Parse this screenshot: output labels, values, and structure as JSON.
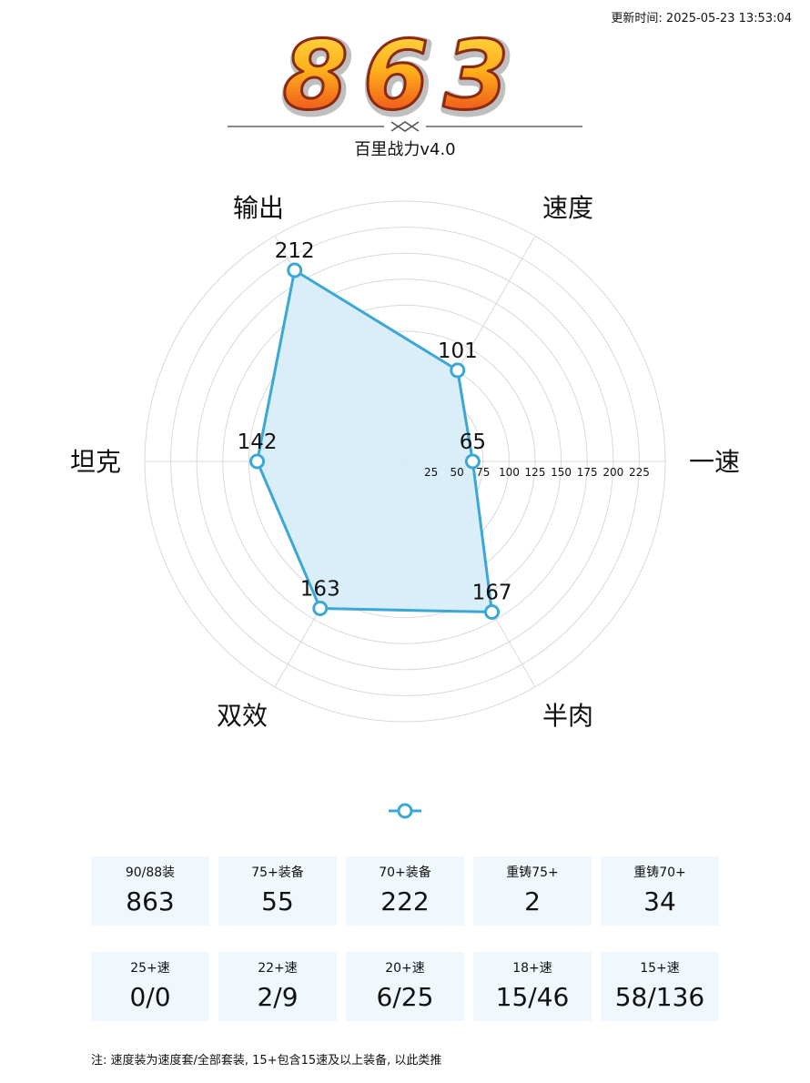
{
  "header": {
    "update_label": "更新时间: 2025-05-23 13:53:04",
    "score": "863",
    "subtitle": "百里战力v4.0"
  },
  "chart_data": {
    "type": "radar",
    "title": "",
    "axes": [
      "一速",
      "速度",
      "输出",
      "坦克",
      "双效",
      "半肉"
    ],
    "values": [
      65,
      101,
      212,
      142,
      163,
      167
    ],
    "ticks": [
      25,
      50,
      75,
      100,
      125,
      150,
      175,
      200,
      225
    ],
    "rmax": 250,
    "grid": true,
    "legend": "bottom",
    "colors": {
      "line": "#3aa7d6",
      "fill": "#d5ecf8",
      "grid": "#d9d9d9"
    }
  },
  "stats": {
    "row1": [
      {
        "label": "90/88装",
        "value": "863"
      },
      {
        "label": "75+装备",
        "value": "55"
      },
      {
        "label": "70+装备",
        "value": "222"
      },
      {
        "label": "重铸75+",
        "value": "2"
      },
      {
        "label": "重铸70+",
        "value": "34"
      }
    ],
    "row2": [
      {
        "label": "25+速",
        "value": "0/0"
      },
      {
        "label": "22+速",
        "value": "2/9"
      },
      {
        "label": "20+速",
        "value": "6/25"
      },
      {
        "label": "18+速",
        "value": "15/46"
      },
      {
        "label": "15+速",
        "value": "58/136"
      }
    ]
  },
  "footnote": "注: 速度装为速度套/全部套装, 15+包含15速及以上装备, 以此类推"
}
